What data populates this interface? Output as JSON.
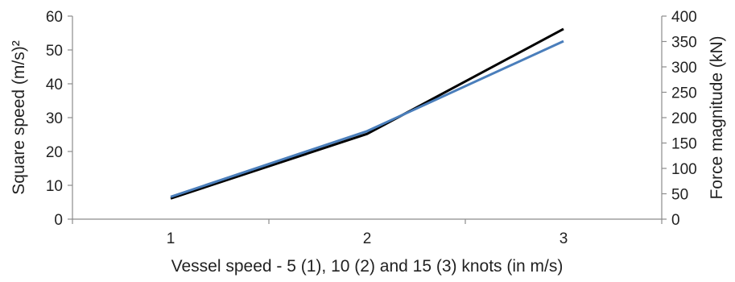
{
  "chart_data": {
    "type": "line",
    "x": [
      1,
      2,
      3
    ],
    "xlabel": "Vessel speed - 5 (1), 10 (2) and 15 (3) knots (in m/s)",
    "x_ticks": [
      "1",
      "2",
      "3"
    ],
    "ylabel": "Square speed (m/s)²",
    "ylim": [
      0,
      60
    ],
    "y_ticks": [
      "0",
      "10",
      "20",
      "30",
      "40",
      "50",
      "60"
    ],
    "y2label": "Force magnitude (kN)",
    "y2lim": [
      0,
      400
    ],
    "y2_ticks": [
      "0",
      "50",
      "100",
      "150",
      "200",
      "250",
      "300",
      "350",
      "400"
    ],
    "grid": false,
    "legend": "none",
    "series": [
      {
        "axis": "left",
        "color": "#000000",
        "values": [
          6.1,
          25.2,
          56.2
        ]
      },
      {
        "axis": "left",
        "color": "#4a7ebb",
        "values": [
          6.6,
          26.0,
          52.6
        ]
      }
    ]
  }
}
